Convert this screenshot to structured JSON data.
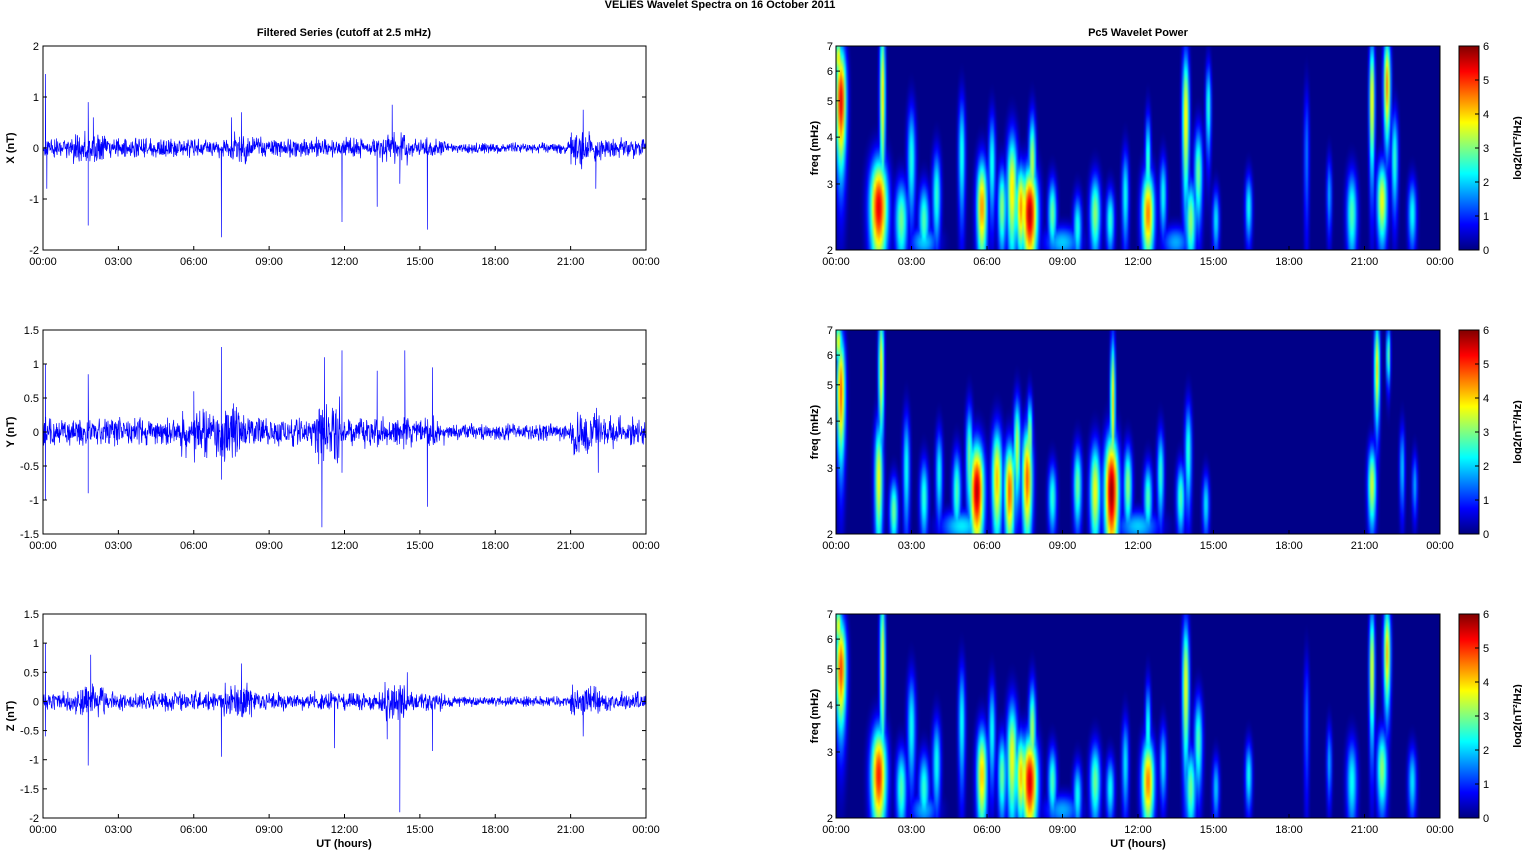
{
  "figure": {
    "suptitle": "VELIES Wavelet Spectra on 16 October   2011",
    "left_title": "Filtered Series (cutoff at 2.5 mHz)",
    "right_title": "Pc5 Wavelet Power",
    "xlabel": "UT (hours)"
  },
  "chart_data": [
    {
      "type": "line",
      "id": "x",
      "ylabel": "X (nT)",
      "ylim": [
        -2,
        2
      ],
      "yticks": [
        "-2",
        "-1",
        "0",
        "1",
        "2"
      ],
      "yticks_values": [
        -2,
        -1,
        0,
        1,
        2
      ],
      "xlim": [
        0,
        24
      ],
      "xticks": [
        "00:00",
        "03:00",
        "06:00",
        "09:00",
        "12:00",
        "15:00",
        "18:00",
        "21:00",
        "00:00"
      ],
      "series": [
        {
          "color": "#0000ff",
          "noise_amplitude": 0.18,
          "spikes": [
            [
              0.1,
              1.45
            ],
            [
              0.15,
              -0.8
            ],
            [
              1.8,
              -1.52
            ],
            [
              1.8,
              0.9
            ],
            [
              2.0,
              0.6
            ],
            [
              7.1,
              -1.75
            ],
            [
              7.5,
              0.6
            ],
            [
              7.9,
              0.7
            ],
            [
              11.9,
              -1.45
            ],
            [
              13.3,
              -1.15
            ],
            [
              13.9,
              0.85
            ],
            [
              14.2,
              -0.7
            ],
            [
              15.3,
              -1.6
            ],
            [
              21.5,
              0.75
            ],
            [
              22.0,
              -0.8
            ]
          ],
          "bursts": [
            [
              1.2,
              2.5,
              0.3
            ],
            [
              7.3,
              8.2,
              0.3
            ],
            [
              13.5,
              14.5,
              0.3
            ],
            [
              21.0,
              22.2,
              0.35
            ]
          ]
        }
      ]
    },
    {
      "type": "line",
      "id": "y",
      "ylabel": "Y (nT)",
      "ylim": [
        -1.5,
        1.5
      ],
      "yticks": [
        "-1.5",
        "-1",
        "-0.5",
        "0",
        "0.5",
        "1",
        "1.5"
      ],
      "yticks_values": [
        -1.5,
        -1,
        -0.5,
        0,
        0.5,
        1,
        1.5
      ],
      "xlim": [
        0,
        24
      ],
      "xticks": [
        "00:00",
        "03:00",
        "06:00",
        "09:00",
        "12:00",
        "15:00",
        "18:00",
        "21:00",
        "00:00"
      ],
      "series": [
        {
          "color": "#0000ff",
          "noise_amplitude": 0.2,
          "spikes": [
            [
              0.1,
              1.0
            ],
            [
              0.1,
              -1.0
            ],
            [
              1.8,
              -0.9
            ],
            [
              1.8,
              0.85
            ],
            [
              6.0,
              0.6
            ],
            [
              7.1,
              1.25
            ],
            [
              7.1,
              -0.7
            ],
            [
              11.1,
              -1.4
            ],
            [
              11.2,
              1.1
            ],
            [
              11.9,
              1.2
            ],
            [
              11.9,
              -0.6
            ],
            [
              13.3,
              0.9
            ],
            [
              14.4,
              1.2
            ],
            [
              15.3,
              -1.1
            ],
            [
              15.5,
              0.95
            ],
            [
              22.1,
              -0.6
            ]
          ],
          "bursts": [
            [
              5.5,
              8.0,
              0.35
            ],
            [
              10.8,
              11.8,
              0.45
            ],
            [
              21.0,
              22.2,
              0.3
            ]
          ]
        }
      ]
    },
    {
      "type": "line",
      "id": "z",
      "ylabel": "Z (nT)",
      "ylim": [
        -2,
        1.5
      ],
      "yticks": [
        "-2",
        "-1.5",
        "-1",
        "-0.5",
        "0",
        "0.5",
        "1",
        "1.5"
      ],
      "yticks_values": [
        -2,
        -1.5,
        -1,
        -0.5,
        0,
        0.5,
        1,
        1.5
      ],
      "xlim": [
        0,
        24
      ],
      "xticks": [
        "00:00",
        "03:00",
        "06:00",
        "09:00",
        "12:00",
        "15:00",
        "18:00",
        "21:00",
        "00:00"
      ],
      "series": [
        {
          "color": "#0000ff",
          "noise_amplitude": 0.15,
          "spikes": [
            [
              0.1,
              1.0
            ],
            [
              0.1,
              -0.6
            ],
            [
              1.8,
              -1.1
            ],
            [
              1.9,
              0.8
            ],
            [
              7.1,
              -0.95
            ],
            [
              7.9,
              0.65
            ],
            [
              11.6,
              -0.8
            ],
            [
              13.7,
              -0.65
            ],
            [
              14.2,
              -1.9
            ],
            [
              14.5,
              0.5
            ],
            [
              15.5,
              -0.85
            ],
            [
              21.5,
              -0.6
            ],
            [
              24.0,
              0.6
            ]
          ],
          "bursts": [
            [
              1.3,
              2.5,
              0.25
            ],
            [
              7.2,
              8.3,
              0.3
            ],
            [
              13.6,
              14.5,
              0.3
            ],
            [
              21.0,
              22.2,
              0.25
            ]
          ]
        }
      ]
    },
    {
      "type": "heatmap",
      "id": "wx",
      "ylabel": "freq (mHz)",
      "yticks": [
        "2",
        "3",
        "4",
        "5",
        "6",
        "7"
      ],
      "yticks_values": [
        2,
        3,
        4,
        5,
        6,
        7
      ],
      "ylim": [
        2,
        7
      ],
      "yscale": "log",
      "xlim": [
        0,
        24
      ],
      "xticks": [
        "00:00",
        "03:00",
        "06:00",
        "09:00",
        "12:00",
        "15:00",
        "18:00",
        "21:00",
        "00:00"
      ],
      "colorbar_label": "log2(nT²/Hz)",
      "colorbar_ticks": [
        "0",
        "1",
        "2",
        "3",
        "4",
        "5",
        "6"
      ],
      "clim": [
        0,
        6
      ],
      "colormap": "jet",
      "blobs": [
        [
          0.2,
          5.0,
          0.15,
          1.3,
          5.5
        ],
        [
          0.1,
          6.5,
          0.1,
          0.6,
          4.0
        ],
        [
          1.7,
          2.6,
          0.25,
          0.6,
          5.5
        ],
        [
          1.85,
          5.2,
          0.08,
          2.0,
          4.0
        ],
        [
          2.6,
          2.4,
          0.18,
          0.45,
          3.0
        ],
        [
          3.0,
          3.5,
          0.12,
          0.9,
          2.5
        ],
        [
          3.5,
          2.4,
          0.15,
          0.4,
          2.8
        ],
        [
          4.0,
          2.8,
          0.12,
          0.6,
          2.6
        ],
        [
          5.0,
          3.6,
          0.1,
          1.0,
          2.5
        ],
        [
          5.8,
          2.6,
          0.15,
          0.6,
          4.5
        ],
        [
          6.2,
          3.4,
          0.1,
          0.8,
          2.5
        ],
        [
          6.6,
          2.6,
          0.12,
          0.5,
          3.2
        ],
        [
          7.0,
          2.9,
          0.15,
          0.8,
          4.0
        ],
        [
          7.35,
          2.6,
          0.15,
          0.5,
          4.5
        ],
        [
          7.7,
          2.5,
          0.22,
          0.55,
          5.8
        ],
        [
          7.8,
          3.4,
          0.1,
          0.8,
          3.5
        ],
        [
          8.6,
          2.5,
          0.12,
          0.4,
          3.0
        ],
        [
          9.6,
          2.3,
          0.12,
          0.35,
          2.5
        ],
        [
          10.3,
          2.5,
          0.15,
          0.45,
          3.2
        ],
        [
          10.9,
          2.4,
          0.12,
          0.35,
          2.6
        ],
        [
          11.5,
          2.8,
          0.1,
          0.6,
          2.4
        ],
        [
          12.4,
          2.5,
          0.18,
          0.5,
          4.6
        ],
        [
          12.4,
          3.4,
          0.08,
          0.8,
          2.8
        ],
        [
          13.0,
          2.8,
          0.1,
          0.5,
          2.4
        ],
        [
          13.9,
          4.5,
          0.1,
          1.5,
          4.0
        ],
        [
          14.1,
          2.4,
          0.15,
          0.45,
          3.2
        ],
        [
          14.4,
          3.2,
          0.12,
          0.7,
          3.0
        ],
        [
          14.8,
          4.8,
          0.08,
          1.0,
          2.6
        ],
        [
          15.1,
          2.4,
          0.1,
          0.35,
          2.2
        ],
        [
          16.4,
          2.6,
          0.1,
          0.4,
          2.4
        ],
        [
          18.7,
          3.6,
          0.08,
          1.2,
          1.5
        ],
        [
          19.6,
          2.8,
          0.08,
          0.5,
          1.8
        ],
        [
          20.5,
          2.5,
          0.15,
          0.5,
          2.8
        ],
        [
          21.3,
          5.0,
          0.08,
          1.5,
          4.0
        ],
        [
          21.7,
          2.7,
          0.15,
          0.5,
          3.8
        ],
        [
          21.9,
          5.5,
          0.1,
          1.3,
          4.5
        ],
        [
          22.2,
          3.5,
          0.1,
          0.8,
          2.6
        ],
        [
          22.9,
          2.5,
          0.12,
          0.4,
          2.4
        ],
        [
          3.5,
          2.1,
          0.4,
          0.15,
          2.0
        ],
        [
          9.0,
          2.1,
          0.5,
          0.15,
          2.0
        ],
        [
          13.5,
          2.1,
          0.4,
          0.15,
          1.8
        ]
      ]
    },
    {
      "type": "heatmap",
      "id": "wy",
      "ylabel": "freq (mHz)",
      "yticks": [
        "2",
        "3",
        "4",
        "5",
        "6",
        "7"
      ],
      "yticks_values": [
        2,
        3,
        4,
        5,
        6,
        7
      ],
      "ylim": [
        2,
        7
      ],
      "yscale": "log",
      "xlim": [
        0,
        24
      ],
      "xticks": [
        "00:00",
        "03:00",
        "06:00",
        "09:00",
        "12:00",
        "15:00",
        "18:00",
        "21:00",
        "00:00"
      ],
      "colorbar_label": "log2(nT²/Hz)",
      "colorbar_ticks": [
        "0",
        "1",
        "2",
        "3",
        "4",
        "5",
        "6"
      ],
      "clim": [
        0,
        6
      ],
      "colormap": "jet",
      "blobs": [
        [
          0.2,
          4.8,
          0.12,
          1.3,
          4.8
        ],
        [
          0.1,
          6.5,
          0.1,
          0.6,
          3.8
        ],
        [
          1.7,
          2.8,
          0.12,
          0.8,
          3.8
        ],
        [
          1.8,
          5.5,
          0.08,
          1.6,
          4.0
        ],
        [
          2.3,
          2.3,
          0.12,
          0.35,
          3.0
        ],
        [
          2.8,
          3.0,
          0.1,
          0.8,
          2.4
        ],
        [
          3.5,
          2.5,
          0.12,
          0.45,
          2.6
        ],
        [
          4.1,
          2.9,
          0.1,
          0.6,
          2.4
        ],
        [
          4.8,
          2.6,
          0.12,
          0.5,
          2.8
        ],
        [
          5.6,
          2.6,
          0.2,
          0.6,
          5.8
        ],
        [
          5.3,
          3.2,
          0.1,
          0.8,
          3.0
        ],
        [
          6.4,
          2.8,
          0.15,
          0.7,
          4.2
        ],
        [
          6.9,
          2.6,
          0.15,
          0.6,
          4.8
        ],
        [
          7.2,
          3.4,
          0.1,
          0.8,
          3.5
        ],
        [
          7.6,
          2.8,
          0.15,
          0.7,
          4.8
        ],
        [
          7.7,
          3.6,
          0.08,
          0.7,
          3.4
        ],
        [
          8.6,
          2.5,
          0.12,
          0.4,
          2.6
        ],
        [
          9.6,
          2.7,
          0.12,
          0.5,
          3.0
        ],
        [
          10.3,
          2.6,
          0.15,
          0.6,
          3.8
        ],
        [
          10.95,
          2.6,
          0.2,
          0.7,
          6.0
        ],
        [
          11.0,
          4.5,
          0.07,
          1.5,
          4.0
        ],
        [
          11.6,
          2.7,
          0.12,
          0.5,
          3.2
        ],
        [
          12.4,
          2.5,
          0.12,
          0.4,
          2.8
        ],
        [
          12.9,
          2.9,
          0.1,
          0.6,
          2.6
        ],
        [
          13.7,
          2.5,
          0.12,
          0.4,
          2.8
        ],
        [
          14.0,
          3.3,
          0.1,
          0.8,
          2.6
        ],
        [
          14.7,
          2.4,
          0.1,
          0.35,
          2.2
        ],
        [
          21.3,
          2.7,
          0.12,
          0.5,
          3.6
        ],
        [
          21.5,
          5.5,
          0.08,
          1.3,
          4.0
        ],
        [
          21.95,
          6.0,
          0.06,
          0.8,
          3.0
        ],
        [
          22.5,
          3.0,
          0.08,
          0.6,
          2.0
        ],
        [
          23.0,
          2.7,
          0.08,
          0.4,
          1.8
        ],
        [
          5.0,
          2.1,
          0.6,
          0.15,
          2.2
        ],
        [
          12.0,
          2.1,
          0.6,
          0.15,
          2.0
        ]
      ]
    },
    {
      "type": "heatmap",
      "id": "wz",
      "ylabel": "freq (mHz)",
      "yticks": [
        "2",
        "3",
        "4",
        "5",
        "6",
        "7"
      ],
      "yticks_values": [
        2,
        3,
        4,
        5,
        6,
        7
      ],
      "ylim": [
        2,
        7
      ],
      "yscale": "log",
      "xlim": [
        0,
        24
      ],
      "xticks": [
        "00:00",
        "03:00",
        "06:00",
        "09:00",
        "12:00",
        "15:00",
        "18:00",
        "21:00",
        "00:00"
      ],
      "colorbar_label": "log2(nT²/Hz)",
      "colorbar_ticks": [
        "0",
        "1",
        "2",
        "3",
        "4",
        "5",
        "6"
      ],
      "clim": [
        0,
        6
      ],
      "colormap": "jet",
      "blobs": [
        [
          0.2,
          5.0,
          0.15,
          1.2,
          5.0
        ],
        [
          0.1,
          6.5,
          0.1,
          0.6,
          3.8
        ],
        [
          1.7,
          2.6,
          0.22,
          0.6,
          5.2
        ],
        [
          1.85,
          5.2,
          0.08,
          2.0,
          3.8
        ],
        [
          2.6,
          2.4,
          0.15,
          0.45,
          2.8
        ],
        [
          3.0,
          3.5,
          0.12,
          0.9,
          2.4
        ],
        [
          3.5,
          2.4,
          0.15,
          0.4,
          2.6
        ],
        [
          4.0,
          2.8,
          0.12,
          0.6,
          2.4
        ],
        [
          5.0,
          3.6,
          0.1,
          1.0,
          2.4
        ],
        [
          5.8,
          2.6,
          0.15,
          0.6,
          4.2
        ],
        [
          6.2,
          3.4,
          0.1,
          0.8,
          2.4
        ],
        [
          6.6,
          2.6,
          0.12,
          0.5,
          3.0
        ],
        [
          7.0,
          2.9,
          0.15,
          0.8,
          3.8
        ],
        [
          7.35,
          2.6,
          0.15,
          0.5,
          4.2
        ],
        [
          7.7,
          2.5,
          0.22,
          0.55,
          5.6
        ],
        [
          7.8,
          3.4,
          0.1,
          0.8,
          3.4
        ],
        [
          8.6,
          2.5,
          0.12,
          0.4,
          2.8
        ],
        [
          9.6,
          2.3,
          0.12,
          0.35,
          2.4
        ],
        [
          10.3,
          2.5,
          0.15,
          0.45,
          3.0
        ],
        [
          10.9,
          2.4,
          0.12,
          0.35,
          2.4
        ],
        [
          11.5,
          2.8,
          0.1,
          0.6,
          2.2
        ],
        [
          12.4,
          2.5,
          0.18,
          0.5,
          4.6
        ],
        [
          12.4,
          3.4,
          0.08,
          0.8,
          2.6
        ],
        [
          13.0,
          2.8,
          0.1,
          0.5,
          2.2
        ],
        [
          13.9,
          4.5,
          0.1,
          1.5,
          3.8
        ],
        [
          14.1,
          2.4,
          0.15,
          0.45,
          3.0
        ],
        [
          14.4,
          3.2,
          0.12,
          0.7,
          2.8
        ],
        [
          15.1,
          2.4,
          0.1,
          0.35,
          2.0
        ],
        [
          16.4,
          2.6,
          0.1,
          0.4,
          2.4
        ],
        [
          18.7,
          3.6,
          0.08,
          1.2,
          1.4
        ],
        [
          19.6,
          2.8,
          0.08,
          0.5,
          1.8
        ],
        [
          20.5,
          2.5,
          0.15,
          0.5,
          2.4
        ],
        [
          21.3,
          5.0,
          0.08,
          1.5,
          3.8
        ],
        [
          21.7,
          2.7,
          0.15,
          0.5,
          3.2
        ],
        [
          21.9,
          5.5,
          0.1,
          1.3,
          4.2
        ],
        [
          22.9,
          2.5,
          0.12,
          0.4,
          2.2
        ],
        [
          3.5,
          2.1,
          0.4,
          0.15,
          1.8
        ],
        [
          9.0,
          2.1,
          0.5,
          0.15,
          1.8
        ]
      ]
    }
  ]
}
